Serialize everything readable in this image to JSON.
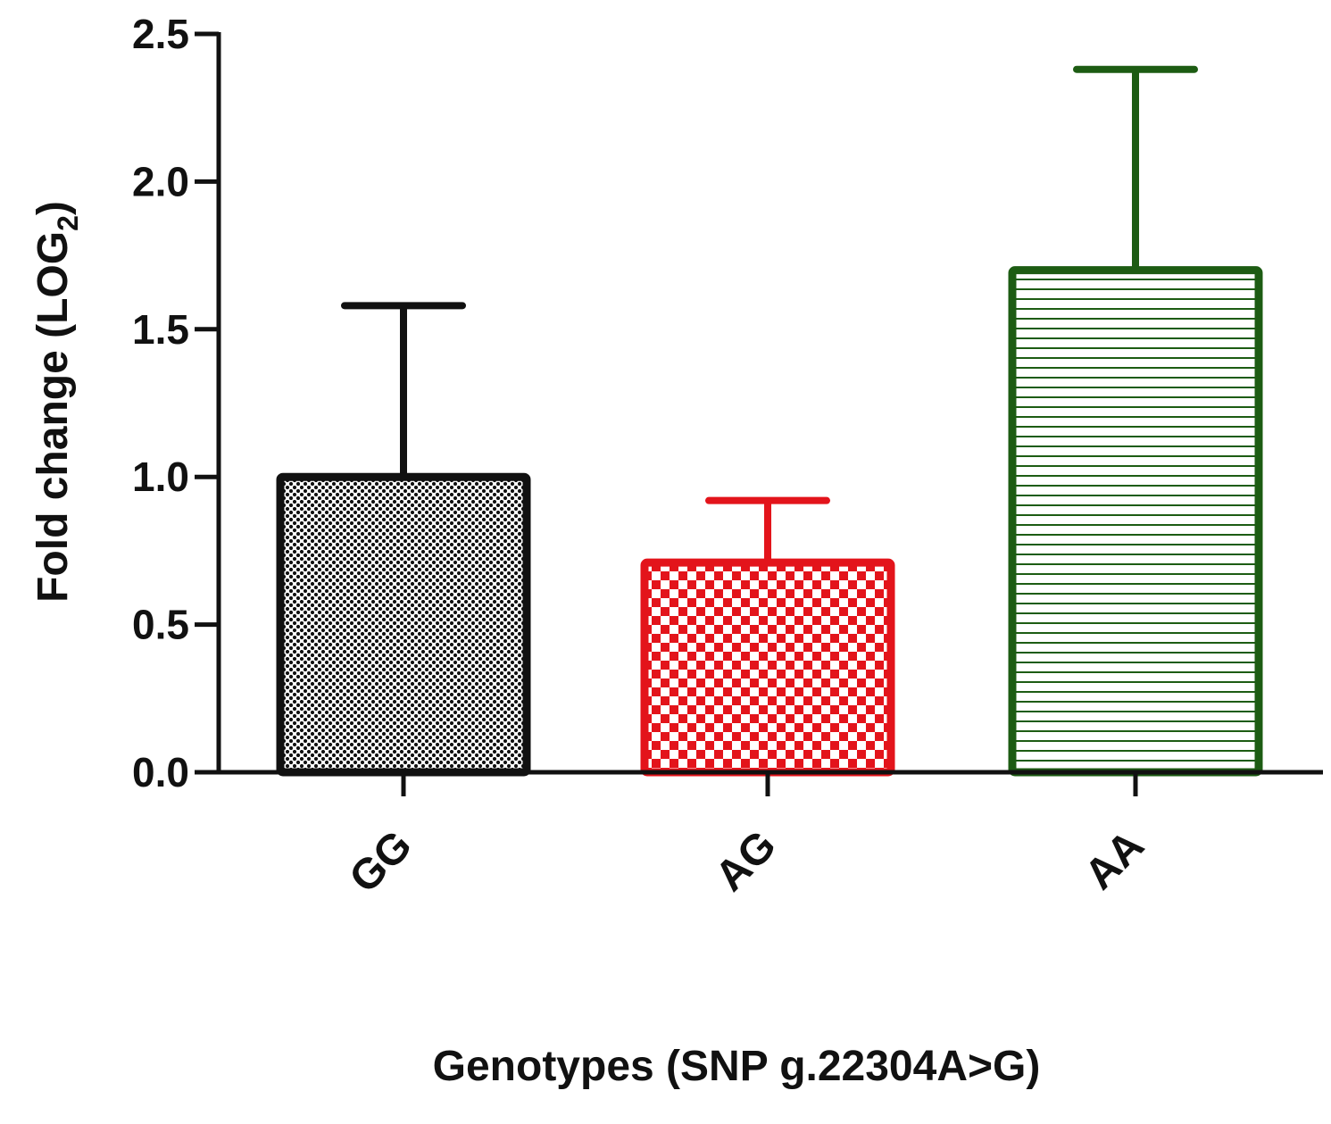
{
  "chart_data": {
    "type": "bar",
    "title": "",
    "xlabel": "Genotypes (SNP g.22304A>G)",
    "ylabel": "Fold change (LOG",
    "ylabel_subscript": "2",
    "ylabel_suffix": ")",
    "categories": [
      "GG",
      "AG",
      "AA"
    ],
    "values": [
      1.0,
      0.71,
      1.7
    ],
    "error_upper": [
      1.58,
      0.92,
      2.38
    ],
    "colors": [
      "#111111",
      "#e3141b",
      "#1d5c13"
    ],
    "patterns": [
      "dots",
      "checker",
      "horizontal-lines"
    ],
    "ylim": [
      0,
      2.5
    ],
    "yticks": [
      "0.0",
      "0.5",
      "1.0",
      "1.5",
      "2.0",
      "2.5"
    ],
    "grid": false
  }
}
